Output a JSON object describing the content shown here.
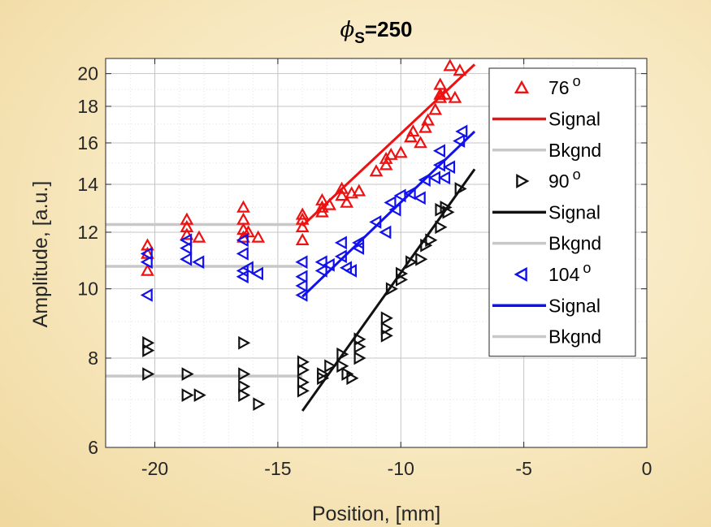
{
  "chart_data": {
    "type": "scatter",
    "title_symbol": "ϕ",
    "title_subscript": "S",
    "title_rest": "=250",
    "xlabel": "Position, [mm]",
    "ylabel": "Amplitude, [a.u.]",
    "xlim": [
      -22,
      0
    ],
    "ylim": [
      6,
      21
    ],
    "yscale": "log",
    "grid": "on (dotted, with minor grid)",
    "legend_position": "right",
    "x_ticks": [
      -20,
      -15,
      -10,
      -5,
      0
    ],
    "x_tick_labels": [
      "-20",
      "-15",
      "-10",
      "-5",
      "0"
    ],
    "y_ticks": [
      6,
      8,
      10,
      12,
      14,
      16,
      18,
      20
    ],
    "y_tick_labels": [
      "6",
      "8",
      "10",
      "12",
      "14",
      "16",
      "18",
      "20"
    ],
    "colors": {
      "s76": "#ee1111",
      "s90": "#111111",
      "s104": "#1111ee",
      "background": "#c8c8c8"
    },
    "series": [
      {
        "name": "76",
        "marker": "triangle-up",
        "color": "#ee1111",
        "points": [
          [
            -20.3,
            11.5
          ],
          [
            -20.3,
            11.2
          ],
          [
            -20.3,
            10.6
          ],
          [
            -18.7,
            12.5
          ],
          [
            -18.7,
            12.2
          ],
          [
            -18.7,
            11.9
          ],
          [
            -18.2,
            11.8
          ],
          [
            -16.4,
            13.0
          ],
          [
            -16.4,
            12.5
          ],
          [
            -16.4,
            12.1
          ],
          [
            -16.4,
            11.8
          ],
          [
            -16.2,
            12.0
          ],
          [
            -15.8,
            11.8
          ],
          [
            -14.0,
            12.7
          ],
          [
            -14.0,
            12.5
          ],
          [
            -14.0,
            12.2
          ],
          [
            -14.0,
            11.7
          ],
          [
            -13.2,
            13.3
          ],
          [
            -13.2,
            13.0
          ],
          [
            -13.2,
            12.8
          ],
          [
            -12.9,
            13.1
          ],
          [
            -12.4,
            13.8
          ],
          [
            -12.4,
            13.5
          ],
          [
            -12.2,
            13.2
          ],
          [
            -12.0,
            13.6
          ],
          [
            -11.7,
            13.7
          ],
          [
            -11.0,
            14.6
          ],
          [
            -10.6,
            15.2
          ],
          [
            -10.6,
            14.9
          ],
          [
            -10.4,
            15.4
          ],
          [
            -10.0,
            15.5
          ],
          [
            -9.6,
            16.3
          ],
          [
            -9.5,
            16.6
          ],
          [
            -9.2,
            16.0
          ],
          [
            -9.0,
            16.8
          ],
          [
            -8.9,
            17.2
          ],
          [
            -8.6,
            17.8
          ],
          [
            -8.4,
            18.7
          ],
          [
            -8.4,
            18.5
          ],
          [
            -8.4,
            19.3
          ],
          [
            -8.2,
            18.7
          ],
          [
            -8.0,
            20.5
          ],
          [
            -7.8,
            18.5
          ],
          [
            -7.6,
            20.2
          ]
        ],
        "signal_fit": [
          [
            -14.0,
            12.25
          ],
          [
            -7.0,
            20.6
          ]
        ],
        "background_fit": [
          [
            -22.0,
            12.3
          ],
          [
            -14.0,
            12.3
          ]
        ]
      },
      {
        "name": "90",
        "marker": "triangle-right",
        "color": "#111111",
        "points": [
          [
            -20.3,
            8.4
          ],
          [
            -20.3,
            8.2
          ],
          [
            -20.3,
            7.6
          ],
          [
            -18.7,
            7.6
          ],
          [
            -18.7,
            7.1
          ],
          [
            -18.2,
            7.1
          ],
          [
            -16.4,
            8.4
          ],
          [
            -16.4,
            7.6
          ],
          [
            -16.4,
            7.3
          ],
          [
            -16.4,
            7.1
          ],
          [
            -15.8,
            6.9
          ],
          [
            -14.0,
            7.9
          ],
          [
            -14.0,
            7.7
          ],
          [
            -14.0,
            7.4
          ],
          [
            -14.0,
            7.2
          ],
          [
            -13.2,
            7.6
          ],
          [
            -13.2,
            7.5
          ],
          [
            -12.9,
            7.8
          ],
          [
            -12.4,
            8.1
          ],
          [
            -12.4,
            7.8
          ],
          [
            -12.2,
            7.6
          ],
          [
            -12.0,
            7.5
          ],
          [
            -11.7,
            8.0
          ],
          [
            -11.7,
            8.3
          ],
          [
            -11.7,
            8.5
          ],
          [
            -10.6,
            9.1
          ],
          [
            -10.6,
            8.8
          ],
          [
            -10.6,
            8.6
          ],
          [
            -10.4,
            10.0
          ],
          [
            -10.0,
            10.5
          ],
          [
            -10.0,
            10.3
          ],
          [
            -9.6,
            10.9
          ],
          [
            -9.2,
            11.0
          ],
          [
            -9.0,
            11.5
          ],
          [
            -8.8,
            11.7
          ],
          [
            -8.4,
            12.2
          ],
          [
            -8.4,
            12.9
          ],
          [
            -8.2,
            13.0
          ],
          [
            -8.1,
            12.8
          ],
          [
            -7.6,
            13.8
          ]
        ],
        "signal_fit": [
          [
            -14.0,
            6.75
          ],
          [
            -7.0,
            14.7
          ]
        ],
        "background_fit": [
          [
            -22.0,
            7.55
          ],
          [
            -14.0,
            7.55
          ]
        ]
      },
      {
        "name": "104",
        "marker": "triangle-left",
        "color": "#1111ee",
        "points": [
          [
            -20.3,
            11.2
          ],
          [
            -20.3,
            10.9
          ],
          [
            -20.3,
            9.8
          ],
          [
            -18.7,
            11.7
          ],
          [
            -18.7,
            11.4
          ],
          [
            -18.7,
            11.0
          ],
          [
            -18.2,
            10.9
          ],
          [
            -16.4,
            11.7
          ],
          [
            -16.4,
            11.2
          ],
          [
            -16.4,
            10.6
          ],
          [
            -16.4,
            10.4
          ],
          [
            -16.2,
            10.7
          ],
          [
            -15.8,
            10.5
          ],
          [
            -14.0,
            10.9
          ],
          [
            -14.0,
            10.4
          ],
          [
            -14.0,
            10.1
          ],
          [
            -14.0,
            9.8
          ],
          [
            -13.2,
            10.9
          ],
          [
            -13.2,
            10.6
          ],
          [
            -12.9,
            10.8
          ],
          [
            -12.4,
            11.6
          ],
          [
            -12.4,
            11.1
          ],
          [
            -12.2,
            10.7
          ],
          [
            -12.0,
            10.6
          ],
          [
            -11.7,
            11.6
          ],
          [
            -11.7,
            11.4
          ],
          [
            -11.0,
            12.4
          ],
          [
            -10.6,
            12.0
          ],
          [
            -10.4,
            13.2
          ],
          [
            -10.2,
            12.9
          ],
          [
            -10.0,
            13.5
          ],
          [
            -9.6,
            13.6
          ],
          [
            -9.2,
            13.4
          ],
          [
            -9.0,
            14.2
          ],
          [
            -8.6,
            14.3
          ],
          [
            -8.4,
            15.6
          ],
          [
            -8.4,
            14.9
          ],
          [
            -8.2,
            14.3
          ],
          [
            -8.0,
            14.8
          ],
          [
            -7.6,
            16.1
          ],
          [
            -7.5,
            16.6
          ]
        ],
        "signal_fit": [
          [
            -14.0,
            9.75
          ],
          [
            -7.0,
            16.6
          ]
        ],
        "background_fit": [
          [
            -22.0,
            10.75
          ],
          [
            -14.0,
            10.75
          ]
        ]
      }
    ],
    "legend": [
      {
        "kind": "marker",
        "series": "76",
        "label": "76",
        "superscript": "o"
      },
      {
        "kind": "line",
        "series": "76",
        "label": "Signal"
      },
      {
        "kind": "bkg",
        "series": "76",
        "label": "Bkgnd"
      },
      {
        "kind": "marker",
        "series": "90",
        "label": "90",
        "superscript": "o"
      },
      {
        "kind": "line",
        "series": "90",
        "label": "Signal"
      },
      {
        "kind": "bkg",
        "series": "90",
        "label": "Bkgnd"
      },
      {
        "kind": "marker",
        "series": "104",
        "label": "104",
        "superscript": "o"
      },
      {
        "kind": "line",
        "series": "104",
        "label": "Signal"
      },
      {
        "kind": "bkg",
        "series": "104",
        "label": "Bkgnd"
      }
    ]
  }
}
